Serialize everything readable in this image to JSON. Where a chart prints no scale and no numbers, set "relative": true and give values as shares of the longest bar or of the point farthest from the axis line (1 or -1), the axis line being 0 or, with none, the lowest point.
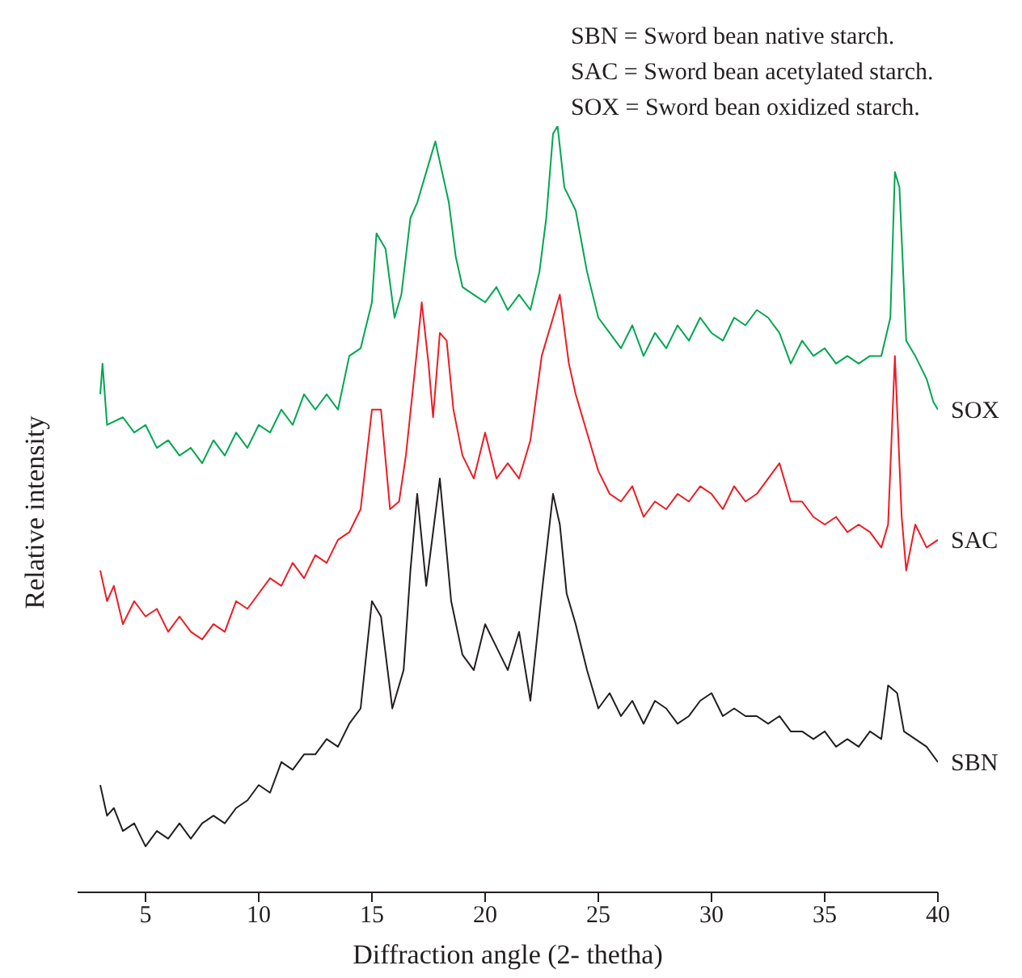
{
  "chart_data": {
    "type": "line",
    "relative": true,
    "xlabel": "Diffraction angle (2- thetha)",
    "ylabel": "Relative intensity",
    "xlim": [
      2,
      40
    ],
    "xticks": [
      5,
      10,
      15,
      20,
      25,
      30,
      35,
      40
    ],
    "marker": "none",
    "line_style": "solid",
    "annotations": [
      "SBN = Sword bean native starch.",
      "SAC = Sword bean acetylated starch.",
      "SOX = Sword bean oxidized starch."
    ],
    "series": [
      {
        "name": "SOX",
        "color": "#00a651",
        "x": [
          3,
          3.1,
          3.3,
          4,
          4.5,
          5,
          5.5,
          6,
          6.5,
          7,
          7.5,
          8,
          8.5,
          9,
          9.5,
          10,
          10.5,
          11,
          11.5,
          12,
          12.5,
          13,
          13.5,
          14,
          14.5,
          15,
          15.2,
          15.6,
          16,
          16.3,
          16.7,
          17,
          17.5,
          17.8,
          18.1,
          18.4,
          18.7,
          19,
          19.5,
          20,
          20.5,
          21,
          21.5,
          22,
          22.4,
          22.7,
          23,
          23.2,
          23.5,
          24,
          24.5,
          25,
          25.5,
          26,
          26.5,
          27,
          27.5,
          28,
          28.5,
          29,
          29.5,
          30,
          30.5,
          31,
          31.5,
          32,
          32.5,
          33,
          33.5,
          34,
          34.5,
          35,
          35.5,
          36,
          36.5,
          37,
          37.5,
          37.9,
          38.1,
          38.3,
          38.6,
          39,
          39.5,
          39.8,
          40
        ],
        "values": [
          0.65,
          0.69,
          0.61,
          0.62,
          0.6,
          0.61,
          0.58,
          0.59,
          0.57,
          0.58,
          0.56,
          0.59,
          0.57,
          0.6,
          0.58,
          0.61,
          0.6,
          0.63,
          0.61,
          0.65,
          0.63,
          0.65,
          0.63,
          0.7,
          0.71,
          0.77,
          0.86,
          0.84,
          0.75,
          0.78,
          0.88,
          0.9,
          0.95,
          0.98,
          0.94,
          0.9,
          0.83,
          0.79,
          0.78,
          0.77,
          0.79,
          0.76,
          0.78,
          0.76,
          0.81,
          0.88,
          0.99,
          1,
          0.92,
          0.89,
          0.81,
          0.75,
          0.73,
          0.71,
          0.74,
          0.7,
          0.73,
          0.71,
          0.74,
          0.72,
          0.75,
          0.73,
          0.72,
          0.75,
          0.74,
          0.76,
          0.75,
          0.73,
          0.69,
          0.72,
          0.7,
          0.71,
          0.69,
          0.7,
          0.69,
          0.7,
          0.7,
          0.75,
          0.94,
          0.92,
          0.72,
          0.7,
          0.67,
          0.64,
          0.63
        ]
      },
      {
        "name": "SAC",
        "color": "#ed1c24",
        "x": [
          3,
          3.3,
          3.6,
          4,
          4.5,
          5,
          5.5,
          6,
          6.5,
          7,
          7.5,
          8,
          8.5,
          9,
          9.5,
          10,
          10.5,
          11,
          11.5,
          12,
          12.5,
          13,
          13.5,
          14,
          14.5,
          15,
          15.4,
          15.8,
          16.2,
          16.5,
          17,
          17.2,
          17.5,
          17.7,
          18,
          18.3,
          18.6,
          19,
          19.5,
          20,
          20.5,
          21,
          21.5,
          22,
          22.5,
          23,
          23.3,
          23.7,
          24,
          24.5,
          25,
          25.5,
          26,
          26.5,
          27,
          27.5,
          28,
          28.5,
          29,
          29.5,
          30,
          30.5,
          31,
          31.5,
          32,
          32.5,
          33,
          33.5,
          34,
          34.5,
          35,
          35.5,
          36,
          36.5,
          37,
          37.5,
          37.8,
          38.1,
          38.4,
          38.6,
          39,
          39.5,
          40
        ],
        "values": [
          0.42,
          0.38,
          0.4,
          0.35,
          0.38,
          0.36,
          0.37,
          0.34,
          0.36,
          0.34,
          0.33,
          0.35,
          0.34,
          0.38,
          0.37,
          0.39,
          0.41,
          0.4,
          0.43,
          0.41,
          0.44,
          0.43,
          0.46,
          0.47,
          0.5,
          0.63,
          0.63,
          0.5,
          0.51,
          0.57,
          0.71,
          0.77,
          0.69,
          0.62,
          0.73,
          0.72,
          0.63,
          0.57,
          0.54,
          0.6,
          0.54,
          0.56,
          0.54,
          0.59,
          0.7,
          0.75,
          0.78,
          0.69,
          0.65,
          0.6,
          0.55,
          0.52,
          0.51,
          0.53,
          0.49,
          0.51,
          0.5,
          0.52,
          0.51,
          0.53,
          0.52,
          0.5,
          0.53,
          0.51,
          0.52,
          0.54,
          0.56,
          0.51,
          0.51,
          0.49,
          0.48,
          0.49,
          0.47,
          0.48,
          0.47,
          0.45,
          0.48,
          0.7,
          0.49,
          0.42,
          0.48,
          0.45,
          0.46
        ]
      },
      {
        "name": "SBN",
        "color": "#231f20",
        "x": [
          3,
          3.3,
          3.6,
          4,
          4.5,
          5,
          5.5,
          6,
          6.5,
          7,
          7.5,
          8,
          8.5,
          9,
          9.5,
          10,
          10.5,
          11,
          11.5,
          12,
          12.5,
          13,
          13.5,
          14,
          14.5,
          15,
          15.4,
          15.9,
          16.4,
          16.7,
          17,
          17.4,
          18,
          18.5,
          19,
          19.5,
          20,
          20.5,
          21,
          21.5,
          22,
          22.5,
          23,
          23.3,
          23.6,
          24,
          24.5,
          25,
          25.5,
          26,
          26.5,
          27,
          27.5,
          28,
          28.5,
          29,
          29.5,
          30,
          30.5,
          31,
          31.5,
          32,
          32.5,
          33,
          33.5,
          34,
          34.5,
          35,
          35.5,
          36,
          36.5,
          37,
          37.5,
          37.8,
          38.2,
          38.5,
          39,
          39.5,
          40
        ],
        "values": [
          0.14,
          0.1,
          0.11,
          0.08,
          0.09,
          0.06,
          0.08,
          0.07,
          0.09,
          0.07,
          0.09,
          0.1,
          0.09,
          0.11,
          0.12,
          0.14,
          0.13,
          0.17,
          0.16,
          0.18,
          0.18,
          0.2,
          0.19,
          0.22,
          0.24,
          0.38,
          0.36,
          0.24,
          0.29,
          0.42,
          0.52,
          0.4,
          0.54,
          0.38,
          0.31,
          0.29,
          0.35,
          0.32,
          0.29,
          0.34,
          0.25,
          0.39,
          0.52,
          0.48,
          0.39,
          0.35,
          0.29,
          0.24,
          0.26,
          0.23,
          0.25,
          0.22,
          0.25,
          0.24,
          0.22,
          0.23,
          0.25,
          0.26,
          0.23,
          0.24,
          0.23,
          0.23,
          0.22,
          0.23,
          0.21,
          0.21,
          0.2,
          0.21,
          0.19,
          0.2,
          0.19,
          0.21,
          0.2,
          0.27,
          0.26,
          0.21,
          0.2,
          0.19,
          0.17
        ]
      }
    ]
  }
}
